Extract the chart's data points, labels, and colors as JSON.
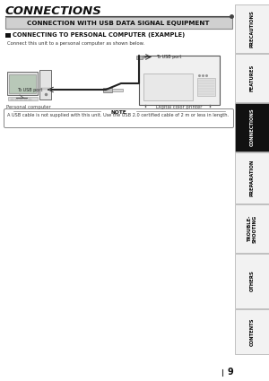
{
  "title": "CONNECTIONS",
  "section_title": "CONNECTION WITH USB DATA SIGNAL EQUIPMENT",
  "subsection_title": "CONNECTING TO PERSONAL COMPUTER (EXAMPLE)",
  "body_text": "Connect this unit to a personal computer as shown below.",
  "note_title": "NOTE",
  "note_text": "A USB cable is not supplied with this unit. Use the USB 2.0 certified cable of 2 m or less in length.",
  "label_personal_computer": "Personal computer",
  "label_digital_printer": "Digital color printer",
  "label_usb_port_top": "To USB port",
  "label_usb_port_side": "To USB port",
  "tab_labels": [
    "PRECAUTIONS",
    "FEATURES",
    "CONNECTIONS",
    "PREPARATION",
    "TROUBLE-\nSHOOTING",
    "OTHERS",
    "CONTENTS"
  ],
  "tab_active": "CONNECTIONS",
  "page_number": "9",
  "bg_color": "#ffffff",
  "tab_active_bg": "#111111",
  "tab_active_fg": "#ffffff",
  "tab_inactive_bg": "#f2f2f2",
  "tab_inactive_fg": "#000000",
  "section_bg": "#d0d0d0",
  "note_bg": "#ffffff",
  "title_line_color": "#444444"
}
